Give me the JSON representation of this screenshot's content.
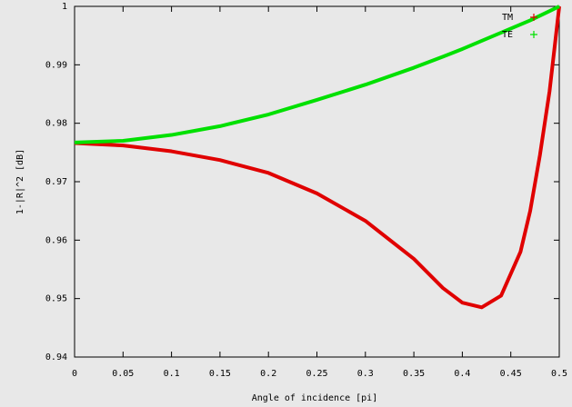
{
  "chart_data": {
    "type": "line",
    "xlabel": "Angle of incidence [pi]",
    "ylabel": "1-|R|^2 [dB]",
    "x": [
      0,
      0.05,
      0.1,
      0.15,
      0.2,
      0.25,
      0.3,
      0.35,
      0.38,
      0.4,
      0.42,
      0.44,
      0.46,
      0.47,
      0.48,
      0.49,
      0.5
    ],
    "series": [
      {
        "name": "TM",
        "color": "#e00000",
        "values": [
          0.9766,
          0.9762,
          0.9752,
          0.9737,
          0.9715,
          0.968,
          0.9633,
          0.9568,
          0.9518,
          0.9493,
          0.9485,
          0.9505,
          0.958,
          0.965,
          0.9745,
          0.9855,
          1.0
        ]
      },
      {
        "name": "TE",
        "color": "#00e000",
        "values": [
          0.9767,
          0.977,
          0.978,
          0.9795,
          0.9815,
          0.984,
          0.9866,
          0.9895,
          0.9914,
          0.9927,
          0.9941,
          0.9955,
          0.9969,
          0.9976,
          0.9984,
          0.9992,
          1.0
        ]
      }
    ],
    "xlim": [
      0,
      0.5
    ],
    "xticks": [
      0,
      0.05,
      0.1,
      0.15,
      0.2,
      0.25,
      0.3,
      0.35,
      0.4,
      0.45,
      0.5
    ],
    "ylim": [
      0.94,
      1
    ],
    "yticks": [
      0.94,
      0.95,
      0.96,
      0.97,
      0.98,
      0.99,
      1
    ],
    "legend": "top-right"
  }
}
